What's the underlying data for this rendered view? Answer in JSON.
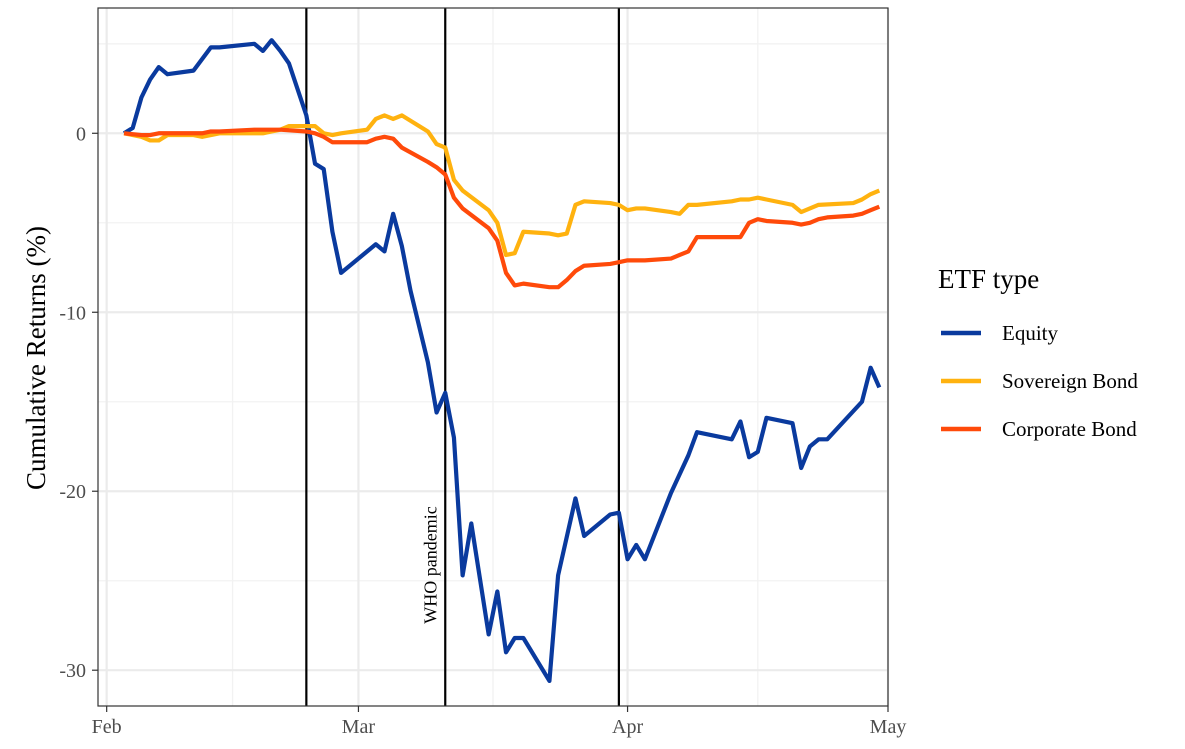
{
  "chart_data": {
    "type": "line",
    "title": "",
    "xlabel": "",
    "ylabel": "Cumulative Returns (%)",
    "grid": true,
    "legend": {
      "title": "ETF type",
      "placement": "right"
    },
    "x_ticks": [
      {
        "label": "Feb",
        "date": "2020-02-01"
      },
      {
        "label": "Mar",
        "date": "2020-03-01"
      },
      {
        "label": "Apr",
        "date": "2020-04-01"
      },
      {
        "label": "May",
        "date": "2020-05-01"
      }
    ],
    "y_ticks": [
      0,
      -10,
      -20,
      -30
    ],
    "xlim": [
      "2020-01-31",
      "2020-05-01"
    ],
    "ylim": [
      -32,
      7
    ],
    "vlines": [
      {
        "date": "2020-02-24",
        "label": ""
      },
      {
        "date": "2020-03-11",
        "label": "WHO pandemic"
      },
      {
        "date": "2020-03-31",
        "label": ""
      }
    ],
    "series": [
      {
        "name": "Equity",
        "color": "#0a3a9e",
        "points": [
          [
            "2020-02-03",
            0.0
          ],
          [
            "2020-02-04",
            0.3
          ],
          [
            "2020-02-05",
            2.0
          ],
          [
            "2020-02-06",
            3.0
          ],
          [
            "2020-02-07",
            3.7
          ],
          [
            "2020-02-08",
            3.3
          ],
          [
            "2020-02-11",
            3.5
          ],
          [
            "2020-02-13",
            4.8
          ],
          [
            "2020-02-14",
            4.8
          ],
          [
            "2020-02-18",
            5.0
          ],
          [
            "2020-02-19",
            4.6
          ],
          [
            "2020-02-20",
            5.2
          ],
          [
            "2020-02-21",
            4.6
          ],
          [
            "2020-02-22",
            3.9
          ],
          [
            "2020-02-24",
            1.0
          ],
          [
            "2020-02-25",
            -1.7
          ],
          [
            "2020-02-26",
            -2.0
          ],
          [
            "2020-02-27",
            -5.5
          ],
          [
            "2020-02-28",
            -7.8
          ],
          [
            "2020-03-03",
            -6.2
          ],
          [
            "2020-03-04",
            -6.6
          ],
          [
            "2020-03-05",
            -4.5
          ],
          [
            "2020-03-06",
            -6.3
          ],
          [
            "2020-03-07",
            -8.8
          ],
          [
            "2020-03-09",
            -12.8
          ],
          [
            "2020-03-10",
            -15.6
          ],
          [
            "2020-03-11",
            -14.5
          ],
          [
            "2020-03-12",
            -17.0
          ],
          [
            "2020-03-13",
            -24.7
          ],
          [
            "2020-03-14",
            -21.8
          ],
          [
            "2020-03-16",
            -28.0
          ],
          [
            "2020-03-17",
            -25.6
          ],
          [
            "2020-03-18",
            -29.0
          ],
          [
            "2020-03-19",
            -28.2
          ],
          [
            "2020-03-20",
            -28.2
          ],
          [
            "2020-03-23",
            -30.6
          ],
          [
            "2020-03-24",
            -24.7
          ],
          [
            "2020-03-26",
            -20.4
          ],
          [
            "2020-03-27",
            -22.5
          ],
          [
            "2020-03-30",
            -21.3
          ],
          [
            "2020-03-31",
            -21.2
          ],
          [
            "2020-04-01",
            -23.8
          ],
          [
            "2020-04-02",
            -23.0
          ],
          [
            "2020-04-03",
            -23.8
          ],
          [
            "2020-04-06",
            -20.1
          ],
          [
            "2020-04-08",
            -18.0
          ],
          [
            "2020-04-09",
            -16.7
          ],
          [
            "2020-04-13",
            -17.1
          ],
          [
            "2020-04-14",
            -16.1
          ],
          [
            "2020-04-15",
            -18.1
          ],
          [
            "2020-04-16",
            -17.8
          ],
          [
            "2020-04-17",
            -15.9
          ],
          [
            "2020-04-20",
            -16.2
          ],
          [
            "2020-04-21",
            -18.7
          ],
          [
            "2020-04-22",
            -17.5
          ],
          [
            "2020-04-23",
            -17.1
          ],
          [
            "2020-04-24",
            -17.1
          ],
          [
            "2020-04-28",
            -15.0
          ],
          [
            "2020-04-29",
            -13.1
          ],
          [
            "2020-04-30",
            -14.2
          ]
        ]
      },
      {
        "name": "Sovereign Bond",
        "color": "#ffb20f",
        "points": [
          [
            "2020-02-03",
            0.0
          ],
          [
            "2020-02-05",
            -0.2
          ],
          [
            "2020-02-06",
            -0.4
          ],
          [
            "2020-02-07",
            -0.4
          ],
          [
            "2020-02-08",
            -0.1
          ],
          [
            "2020-02-11",
            -0.1
          ],
          [
            "2020-02-12",
            -0.2
          ],
          [
            "2020-02-13",
            -0.1
          ],
          [
            "2020-02-14",
            0.0
          ],
          [
            "2020-02-18",
            0.0
          ],
          [
            "2020-02-19",
            0.0
          ],
          [
            "2020-02-20",
            0.1
          ],
          [
            "2020-02-21",
            0.2
          ],
          [
            "2020-02-22",
            0.4
          ],
          [
            "2020-02-24",
            0.4
          ],
          [
            "2020-02-25",
            0.4
          ],
          [
            "2020-02-26",
            0.0
          ],
          [
            "2020-02-27",
            -0.1
          ],
          [
            "2020-02-28",
            0.0
          ],
          [
            "2020-03-02",
            0.2
          ],
          [
            "2020-03-03",
            0.8
          ],
          [
            "2020-03-04",
            1.0
          ],
          [
            "2020-03-05",
            0.8
          ],
          [
            "2020-03-06",
            1.0
          ],
          [
            "2020-03-09",
            0.1
          ],
          [
            "2020-03-10",
            -0.6
          ],
          [
            "2020-03-11",
            -0.8
          ],
          [
            "2020-03-12",
            -2.6
          ],
          [
            "2020-03-13",
            -3.2
          ],
          [
            "2020-03-16",
            -4.3
          ],
          [
            "2020-03-17",
            -5.0
          ],
          [
            "2020-03-18",
            -6.8
          ],
          [
            "2020-03-19",
            -6.7
          ],
          [
            "2020-03-20",
            -5.5
          ],
          [
            "2020-03-23",
            -5.6
          ],
          [
            "2020-03-24",
            -5.7
          ],
          [
            "2020-03-25",
            -5.6
          ],
          [
            "2020-03-26",
            -4.0
          ],
          [
            "2020-03-27",
            -3.8
          ],
          [
            "2020-03-30",
            -3.9
          ],
          [
            "2020-03-31",
            -4.0
          ],
          [
            "2020-04-01",
            -4.3
          ],
          [
            "2020-04-02",
            -4.2
          ],
          [
            "2020-04-03",
            -4.2
          ],
          [
            "2020-04-06",
            -4.4
          ],
          [
            "2020-04-07",
            -4.5
          ],
          [
            "2020-04-08",
            -4.0
          ],
          [
            "2020-04-09",
            -4.0
          ],
          [
            "2020-04-13",
            -3.8
          ],
          [
            "2020-04-14",
            -3.7
          ],
          [
            "2020-04-15",
            -3.7
          ],
          [
            "2020-04-16",
            -3.6
          ],
          [
            "2020-04-17",
            -3.7
          ],
          [
            "2020-04-20",
            -4.0
          ],
          [
            "2020-04-21",
            -4.4
          ],
          [
            "2020-04-22",
            -4.2
          ],
          [
            "2020-04-23",
            -4.0
          ],
          [
            "2020-04-27",
            -3.9
          ],
          [
            "2020-04-28",
            -3.7
          ],
          [
            "2020-04-29",
            -3.4
          ],
          [
            "2020-04-30",
            -3.2
          ]
        ]
      },
      {
        "name": "Corporate Bond",
        "color": "#ff4a0a",
        "points": [
          [
            "2020-02-03",
            0.0
          ],
          [
            "2020-02-05",
            -0.1
          ],
          [
            "2020-02-06",
            -0.1
          ],
          [
            "2020-02-07",
            0.0
          ],
          [
            "2020-02-10",
            0.0
          ],
          [
            "2020-02-11",
            0.0
          ],
          [
            "2020-02-12",
            0.0
          ],
          [
            "2020-02-13",
            0.1
          ],
          [
            "2020-02-14",
            0.1
          ],
          [
            "2020-02-18",
            0.2
          ],
          [
            "2020-02-19",
            0.2
          ],
          [
            "2020-02-20",
            0.2
          ],
          [
            "2020-02-21",
            0.2
          ],
          [
            "2020-02-24",
            0.1
          ],
          [
            "2020-02-25",
            0.0
          ],
          [
            "2020-02-26",
            -0.2
          ],
          [
            "2020-02-27",
            -0.5
          ],
          [
            "2020-02-28",
            -0.5
          ],
          [
            "2020-03-02",
            -0.5
          ],
          [
            "2020-03-03",
            -0.3
          ],
          [
            "2020-03-04",
            -0.2
          ],
          [
            "2020-03-05",
            -0.3
          ],
          [
            "2020-03-06",
            -0.8
          ],
          [
            "2020-03-09",
            -1.6
          ],
          [
            "2020-03-10",
            -1.9
          ],
          [
            "2020-03-11",
            -2.3
          ],
          [
            "2020-03-12",
            -3.6
          ],
          [
            "2020-03-13",
            -4.2
          ],
          [
            "2020-03-16",
            -5.3
          ],
          [
            "2020-03-17",
            -6.0
          ],
          [
            "2020-03-18",
            -7.8
          ],
          [
            "2020-03-19",
            -8.5
          ],
          [
            "2020-03-20",
            -8.4
          ],
          [
            "2020-03-23",
            -8.6
          ],
          [
            "2020-03-24",
            -8.6
          ],
          [
            "2020-03-25",
            -8.2
          ],
          [
            "2020-03-26",
            -7.7
          ],
          [
            "2020-03-27",
            -7.4
          ],
          [
            "2020-03-30",
            -7.3
          ],
          [
            "2020-03-31",
            -7.2
          ],
          [
            "2020-04-01",
            -7.1
          ],
          [
            "2020-04-02",
            -7.1
          ],
          [
            "2020-04-03",
            -7.1
          ],
          [
            "2020-04-06",
            -7.0
          ],
          [
            "2020-04-07",
            -6.8
          ],
          [
            "2020-04-08",
            -6.6
          ],
          [
            "2020-04-09",
            -5.8
          ],
          [
            "2020-04-13",
            -5.8
          ],
          [
            "2020-04-14",
            -5.8
          ],
          [
            "2020-04-15",
            -5.0
          ],
          [
            "2020-04-16",
            -4.8
          ],
          [
            "2020-04-17",
            -4.9
          ],
          [
            "2020-04-20",
            -5.0
          ],
          [
            "2020-04-21",
            -5.1
          ],
          [
            "2020-04-22",
            -5.0
          ],
          [
            "2020-04-23",
            -4.8
          ],
          [
            "2020-04-24",
            -4.7
          ],
          [
            "2020-04-27",
            -4.6
          ],
          [
            "2020-04-28",
            -4.5
          ],
          [
            "2020-04-29",
            -4.3
          ],
          [
            "2020-04-30",
            -4.1
          ]
        ]
      }
    ]
  }
}
